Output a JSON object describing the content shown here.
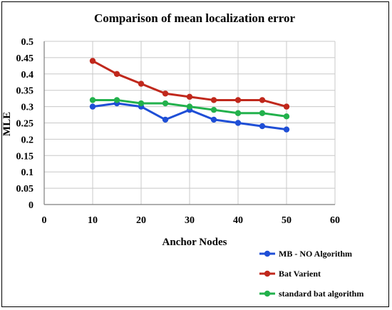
{
  "chart_data": {
    "type": "line",
    "title": "Comparison  of mean localization  error",
    "xlabel": "Anchor Nodes",
    "ylabel": "MLE",
    "xlim": [
      0,
      60
    ],
    "ylim": [
      0,
      0.5
    ],
    "xticks": [
      "0",
      "10",
      "20",
      "30",
      "40",
      "50",
      "60"
    ],
    "yticks": [
      "0",
      "0.05",
      "0.1",
      "0.15",
      "0.2",
      "0.25",
      "0.3",
      "0.35",
      "0.4",
      "0.45",
      "0.5"
    ],
    "grid": true,
    "legend_position": "bottom-right",
    "x": [
      10,
      15,
      20,
      25,
      30,
      35,
      40,
      45,
      50
    ],
    "series": [
      {
        "name": "MB - NO Algorithm",
        "color": "#1f4fd6",
        "values": [
          0.3,
          0.31,
          0.3,
          0.26,
          0.29,
          0.26,
          0.25,
          0.24,
          0.23
        ]
      },
      {
        "name": "Bat Varient",
        "color": "#c0281c",
        "values": [
          0.44,
          0.4,
          0.37,
          0.34,
          0.33,
          0.32,
          0.32,
          0.32,
          0.3
        ]
      },
      {
        "name": "standard bat algorithm",
        "color": "#22b14c",
        "values": [
          0.32,
          0.32,
          0.31,
          0.31,
          0.3,
          0.29,
          0.28,
          0.28,
          0.27
        ]
      }
    ]
  }
}
